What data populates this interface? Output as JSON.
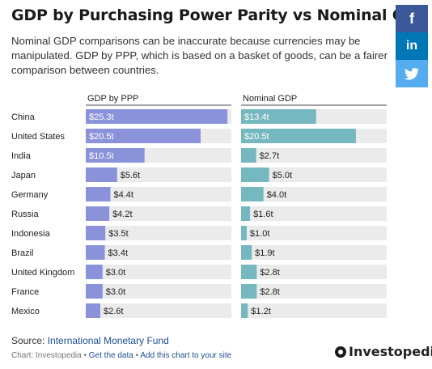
{
  "header": {
    "title": "GDP by Purchasing Power Parity vs Nominal GDP",
    "subtitle": "Nominal GDP comparisons can be inaccurate because currencies may be manipulated. GDP by PPP, which is based on a basket of goods, can be a fairer comparison between countries."
  },
  "social": {
    "facebook": "f",
    "linkedin": "in",
    "twitter": "🐦"
  },
  "colors": {
    "ppp": "#8a93d9",
    "nominal": "#76b8bf",
    "track": "#ebebeb"
  },
  "chart_data": {
    "type": "bar",
    "orientation": "horizontal",
    "categories": [
      "China",
      "United States",
      "India",
      "Japan",
      "Germany",
      "Russia",
      "Indonesia",
      "Brazil",
      "United Kingdom",
      "France",
      "Mexico"
    ],
    "series": [
      {
        "name": "GDP by PPP",
        "values": [
          25.3,
          20.5,
          10.5,
          5.6,
          4.4,
          4.2,
          3.5,
          3.4,
          3.0,
          3.0,
          2.6
        ],
        "labels": [
          "$25.3t",
          "$20.5t",
          "$10.5t",
          "$5.6t",
          "$4.4t",
          "$4.2t",
          "$3.5t",
          "$3.4t",
          "$3.0t",
          "$3.0t",
          "$2.6t"
        ]
      },
      {
        "name": "Nominal GDP",
        "values": [
          13.4,
          20.5,
          2.7,
          5.0,
          4.0,
          1.6,
          1.0,
          1.9,
          2.8,
          2.8,
          1.2
        ],
        "labels": [
          "$13.4t",
          "$20.5t",
          "$2.7t",
          "$5.0t",
          "$4.0t",
          "$1.6t",
          "$1.0t",
          "$1.9t",
          "$2.8t",
          "$2.8t",
          "$1.2t"
        ]
      }
    ],
    "xlim": [
      0,
      26
    ]
  },
  "footer": {
    "source_prefix": "Source: ",
    "source_link": "International Monetary Fund",
    "credit_prefix": "Chart: Investopedia",
    "credit_sep1": " • ",
    "get_data": "Get the data",
    "credit_sep2": " • ",
    "add_chart": "Add this chart to your site",
    "logo": "Investopedia"
  }
}
